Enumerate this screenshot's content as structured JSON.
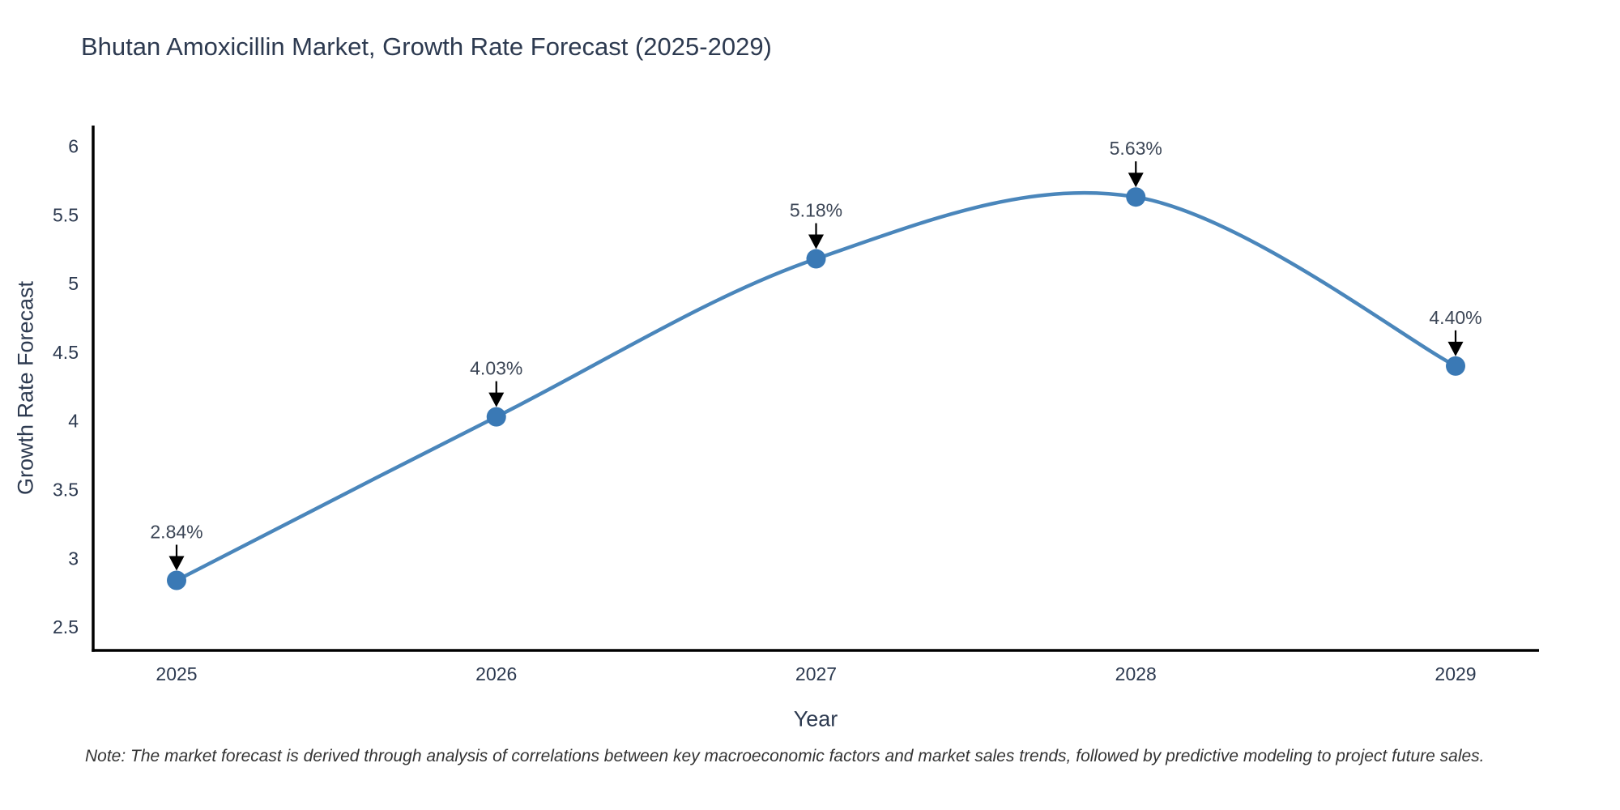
{
  "chart_data": {
    "type": "line",
    "title": "Bhutan Amoxicillin Market, Growth Rate Forecast (2025-2029)",
    "xlabel": "Year",
    "ylabel": "Growth Rate Forecast",
    "categories": [
      "2025",
      "2026",
      "2027",
      "2028",
      "2029"
    ],
    "x": [
      2025,
      2026,
      2027,
      2028,
      2029
    ],
    "series": [
      {
        "name": "Growth Rate Forecast",
        "values": [
          2.84,
          4.03,
          5.18,
          5.63,
          4.4
        ],
        "point_labels": [
          "2.84%",
          "4.03%",
          "5.18%",
          "5.63%",
          "4.40%"
        ]
      }
    ],
    "yticks": [
      2.5,
      3,
      3.5,
      4,
      4.5,
      5,
      5.5,
      6
    ],
    "ylim": [
      2.33,
      6.15
    ],
    "line_shape": "spline",
    "grid": false,
    "legend_position": "none",
    "colors": {
      "line": "#4a86bb",
      "marker": "#3a79b5",
      "axis": "#000000",
      "text": "#2d3a50",
      "annotation_text": "#3c4656",
      "annotation_arrow": "#000000",
      "note_text": "#333333",
      "background": "#ffffff"
    },
    "note": "Note: The market forecast is derived through analysis of correlations between key macroeconomic factors and market sales trends, followed by predictive modeling to project future sales."
  }
}
